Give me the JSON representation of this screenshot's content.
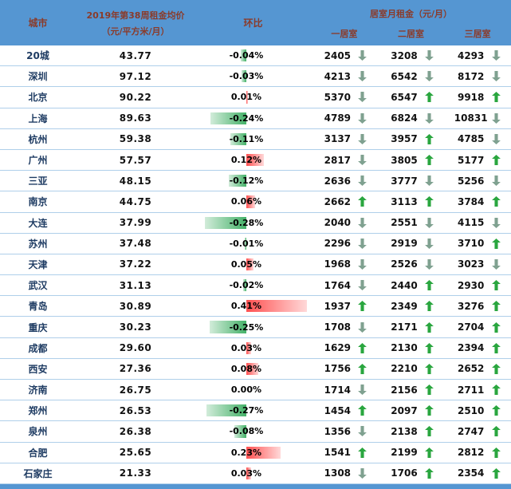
{
  "header": {
    "city": "城市",
    "price_line1": "2019年第38周租金均价",
    "price_line2": "（元/平方米/月）",
    "wow": "环比",
    "rooms_group": "居室月租金（元/月）",
    "room1": "一居室",
    "room2": "二居室",
    "room3": "三居室"
  },
  "icons": {
    "up_arrow": "block-arrow-up",
    "down_arrow": "block-arrow-down"
  },
  "colors": {
    "header_bg": "#5596D2",
    "header_text": "#8A3B2A",
    "row_line": "#AFCFEA",
    "city_text": "#1F3C63",
    "value_text": "#111111",
    "bar_negative": "#44B168",
    "bar_negative_light": "#D2ECDA",
    "bar_positive": "#FF5050",
    "bar_positive_light": "#FFD9D9",
    "arrow_up": "#2AA63F",
    "arrow_down": "#7FA190"
  },
  "wow_axis": {
    "min": -0.28,
    "max": 0.41
  },
  "chart_data": {
    "type": "table",
    "columns": [
      "城市",
      "2019年第38周租金均价（元/平方米/月）",
      "环比",
      "一居室月租金（元/月）",
      "一居室趋势",
      "二居室月租金（元/月）",
      "二居室趋势",
      "三居室月租金（元/月）",
      "三居室趋势"
    ],
    "wow_bar": {
      "style": "databar",
      "negative_color": "green",
      "positive_color": "red",
      "range_min_pct": -0.28,
      "range_max_pct": 0.41
    },
    "rows": [
      [
        "20城",
        "43.77",
        "-0.04%",
        2405,
        "down",
        3208,
        "down",
        4293,
        "down"
      ],
      [
        "深圳",
        "97.12",
        "-0.03%",
        4213,
        "down",
        6542,
        "down",
        8172,
        "down"
      ],
      [
        "北京",
        "90.22",
        "0.01%",
        5370,
        "down",
        6547,
        "up",
        9918,
        "up"
      ],
      [
        "上海",
        "89.63",
        "-0.24%",
        4789,
        "down",
        6824,
        "down",
        10831,
        "down"
      ],
      [
        "杭州",
        "59.38",
        "-0.11%",
        3137,
        "down",
        3957,
        "up",
        4785,
        "down"
      ],
      [
        "广州",
        "57.57",
        "0.12%",
        2817,
        "down",
        3805,
        "up",
        5177,
        "up"
      ],
      [
        "三亚",
        "48.15",
        "-0.12%",
        2636,
        "down",
        3777,
        "down",
        5256,
        "down"
      ],
      [
        "南京",
        "44.75",
        "0.06%",
        2662,
        "up",
        3113,
        "up",
        3784,
        "up"
      ],
      [
        "大连",
        "37.99",
        "-0.28%",
        2040,
        "down",
        2551,
        "down",
        4115,
        "down"
      ],
      [
        "苏州",
        "37.48",
        "-0.01%",
        2296,
        "down",
        2919,
        "down",
        3710,
        "up"
      ],
      [
        "天津",
        "37.22",
        "0.05%",
        1968,
        "down",
        2526,
        "down",
        3023,
        "down"
      ],
      [
        "武汉",
        "31.13",
        "-0.02%",
        1764,
        "down",
        2440,
        "up",
        2930,
        "up"
      ],
      [
        "青岛",
        "30.89",
        "0.41%",
        1937,
        "up",
        2349,
        "up",
        3276,
        "up"
      ],
      [
        "重庆",
        "30.23",
        "-0.25%",
        1708,
        "down",
        2171,
        "up",
        2704,
        "up"
      ],
      [
        "成都",
        "29.60",
        "0.03%",
        1629,
        "up",
        2130,
        "up",
        2394,
        "up"
      ],
      [
        "西安",
        "27.36",
        "0.08%",
        1756,
        "up",
        2210,
        "up",
        2652,
        "up"
      ],
      [
        "济南",
        "26.75",
        "0.00%",
        1714,
        "down",
        2156,
        "up",
        2711,
        "up"
      ],
      [
        "郑州",
        "26.53",
        "-0.27%",
        1454,
        "up",
        2097,
        "up",
        2510,
        "up"
      ],
      [
        "泉州",
        "26.38",
        "-0.08%",
        1356,
        "down",
        2138,
        "up",
        2747,
        "up"
      ],
      [
        "合肥",
        "25.65",
        "0.23%",
        1541,
        "up",
        2199,
        "up",
        2812,
        "up"
      ],
      [
        "石家庄",
        "21.33",
        "0.03%",
        1308,
        "down",
        1706,
        "up",
        2354,
        "up"
      ]
    ]
  }
}
